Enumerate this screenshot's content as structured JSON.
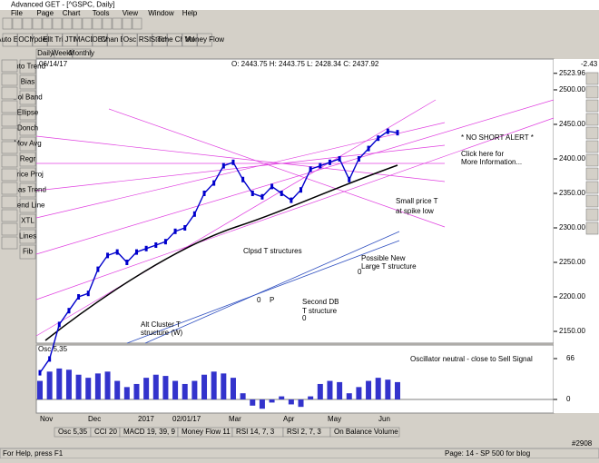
{
  "window": {
    "title": "Advanced GET - [^GSPC, Daily]"
  },
  "menu": [
    "File",
    "Page",
    "Chart",
    "Tools",
    "View",
    "Window",
    "Help"
  ],
  "toolbar": [
    "Auto Ellt",
    "OCI",
    "Ypdes",
    "Ellt Trig",
    "JTI",
    "MACD",
    "OBV",
    "Chan Bk",
    "Osc",
    "RSI",
    "Stoch",
    "Time Chan",
    "Vol",
    "Money Flow"
  ],
  "side_toolbar": [
    "Auto Trend",
    "Bias",
    "Bol Band",
    "Ellipse",
    "Donch",
    "Mov Avg",
    "Regr",
    "Price Proj",
    "Seas Trend",
    "Trend Line",
    "XTL",
    "Lines",
    "Fib"
  ],
  "tabs": [
    "Daily",
    "Weekly",
    "Monthly"
  ],
  "chart_data": [
    {
      "type": "line",
      "date": "06/14/17",
      "ohlc": "O: 2443.75  H: 2443.75  L: 2428.34  C: 2437.92",
      "change": "-2.43",
      "color": "#0000cc",
      "values": [
        2090,
        2110,
        2160,
        2180,
        2200,
        2205,
        2240,
        2260,
        2265,
        2250,
        2265,
        2270,
        2275,
        2280,
        2295,
        2300,
        2320,
        2350,
        2365,
        2390,
        2395,
        2370,
        2350,
        2345,
        2360,
        2350,
        2340,
        2355,
        2385,
        2390,
        2395,
        2400,
        2370,
        2400,
        2415,
        2430,
        2440,
        2437.92
      ],
      "ylim": [
        2132.9,
        2544.7
      ],
      "yticks": [
        {
          "value": 2150,
          "label": "2150.00"
        },
        {
          "value": 2200,
          "label": "2200.00"
        },
        {
          "value": 2250,
          "label": "2250.00"
        },
        {
          "value": 2300,
          "label": "2300.00"
        },
        {
          "value": 2350,
          "label": "2350.00"
        },
        {
          "value": 2400,
          "label": "2400.00"
        },
        {
          "value": 2450,
          "label": "2450.00"
        },
        {
          "value": 2500,
          "label": "2500.00"
        },
        {
          "value": 2523.96,
          "label": "2523.96"
        }
      ],
      "annotations": [
        "* NO SHORT ALERT *",
        "Click here for",
        "More Information...",
        "Small price T",
        "at spike low",
        "Clpsd T structures",
        "Possible New",
        "Large T structure",
        "0",
        "0",
        "P",
        "Second DB",
        "T structure",
        "0",
        "Alt Cluster T",
        "structure (W)"
      ]
    },
    {
      "type": "bar",
      "title": "Osc 5,35",
      "color": "#3333cc",
      "values": [
        30,
        45,
        50,
        48,
        40,
        35,
        42,
        45,
        30,
        20,
        25,
        35,
        40,
        38,
        30,
        25,
        30,
        40,
        45,
        42,
        35,
        10,
        -10,
        -15,
        -5,
        5,
        -8,
        -12,
        5,
        25,
        30,
        28,
        10,
        20,
        30,
        35,
        32,
        28
      ],
      "ylim": [
        -22,
        88
      ],
      "yticks": [
        0,
        66
      ],
      "annotation": "Oscillator neutral - close to Sell Signal"
    }
  ],
  "x_axis_labels": [
    "Nov",
    "Dec",
    "2017",
    "02/01/17",
    "Mar",
    "Apr",
    "May",
    "Jun"
  ],
  "indicator_tabs": [
    "Osc 5,35",
    "CCI 20",
    "MACD 19, 39, 9",
    "Money Flow 11",
    "RSI 14, 7, 3",
    "RSI 2, 7, 3",
    "On Balance Volume"
  ],
  "status": {
    "help": "For Help, press F1",
    "page": "Page: 14 - SP 500 for blog",
    "bar": "#2908"
  }
}
